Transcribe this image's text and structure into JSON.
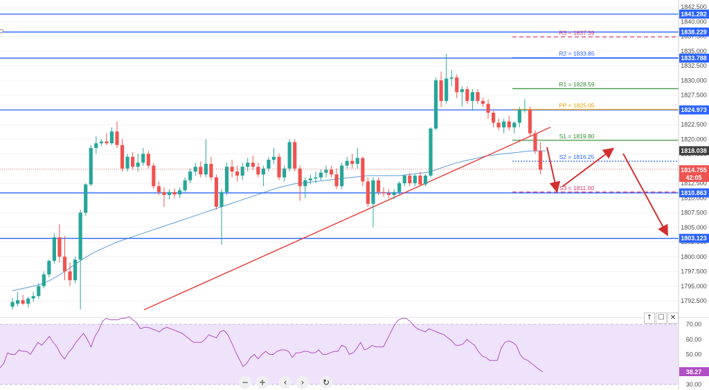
{
  "chart_data": [
    {
      "type": "candlestick",
      "title": "",
      "ylim": [
        1790.0,
        1843.5
      ],
      "y_ticks": [
        "1842.500",
        "1840.000",
        "1837.500",
        "1835.000",
        "1832.500",
        "1830.000",
        "1827.500",
        "1825.000",
        "1822.500",
        "1820.000",
        "1817.500",
        "1815.000",
        "1812.500",
        "1810.000",
        "1807.500",
        "1805.000",
        "1802.500",
        "1800.000",
        "1797.500",
        "1795.000",
        "1792.500"
      ],
      "candles": [
        {
          "o": 1791.5,
          "h": 1793.0,
          "l": 1791.0,
          "c": 1792.3
        },
        {
          "o": 1792.0,
          "h": 1794.0,
          "l": 1791.5,
          "c": 1792.6
        },
        {
          "o": 1792.6,
          "h": 1793.5,
          "l": 1791.8,
          "c": 1792.0
        },
        {
          "o": 1792.0,
          "h": 1793.2,
          "l": 1791.4,
          "c": 1792.9
        },
        {
          "o": 1792.9,
          "h": 1794.0,
          "l": 1792.3,
          "c": 1793.3
        },
        {
          "o": 1793.3,
          "h": 1795.5,
          "l": 1792.8,
          "c": 1795.0
        },
        {
          "o": 1795.0,
          "h": 1797.5,
          "l": 1794.6,
          "c": 1797.0
        },
        {
          "o": 1797.0,
          "h": 1799.5,
          "l": 1796.5,
          "c": 1799.3
        },
        {
          "o": 1799.3,
          "h": 1804.0,
          "l": 1798.8,
          "c": 1803.3
        },
        {
          "o": 1803.3,
          "h": 1805.5,
          "l": 1799.0,
          "c": 1800.0
        },
        {
          "o": 1800.0,
          "h": 1803.5,
          "l": 1796.0,
          "c": 1797.5
        },
        {
          "o": 1797.5,
          "h": 1799.0,
          "l": 1795.0,
          "c": 1796.0
        },
        {
          "o": 1796.0,
          "h": 1800.0,
          "l": 1795.5,
          "c": 1799.5
        },
        {
          "o": 1799.5,
          "h": 1808.0,
          "l": 1791.0,
          "c": 1807.5
        },
        {
          "o": 1807.5,
          "h": 1812.5,
          "l": 1807.0,
          "c": 1812.3
        },
        {
          "o": 1812.3,
          "h": 1819.0,
          "l": 1812.0,
          "c": 1818.5
        },
        {
          "o": 1818.5,
          "h": 1820.5,
          "l": 1817.5,
          "c": 1819.3
        },
        {
          "o": 1819.3,
          "h": 1820.0,
          "l": 1818.8,
          "c": 1819.6
        },
        {
          "o": 1819.6,
          "h": 1821.0,
          "l": 1819.0,
          "c": 1819.3
        },
        {
          "o": 1819.3,
          "h": 1822.0,
          "l": 1819.0,
          "c": 1821.3
        },
        {
          "o": 1821.3,
          "h": 1823.0,
          "l": 1818.5,
          "c": 1819.0
        },
        {
          "o": 1819.0,
          "h": 1820.0,
          "l": 1814.5,
          "c": 1815.0
        },
        {
          "o": 1815.0,
          "h": 1817.5,
          "l": 1814.5,
          "c": 1817.0
        },
        {
          "o": 1817.0,
          "h": 1817.8,
          "l": 1814.8,
          "c": 1815.3
        },
        {
          "o": 1815.3,
          "h": 1817.5,
          "l": 1814.5,
          "c": 1816.0
        },
        {
          "o": 1816.0,
          "h": 1818.5,
          "l": 1815.5,
          "c": 1817.5
        },
        {
          "o": 1817.5,
          "h": 1818.0,
          "l": 1815.0,
          "c": 1815.5
        },
        {
          "o": 1815.5,
          "h": 1816.0,
          "l": 1811.5,
          "c": 1812.0
        },
        {
          "o": 1812.0,
          "h": 1812.8,
          "l": 1810.5,
          "c": 1811.0
        },
        {
          "o": 1811.0,
          "h": 1811.8,
          "l": 1808.5,
          "c": 1810.5
        },
        {
          "o": 1810.5,
          "h": 1811.5,
          "l": 1809.8,
          "c": 1811.0
        },
        {
          "o": 1811.0,
          "h": 1811.6,
          "l": 1810.0,
          "c": 1810.6
        },
        {
          "o": 1810.6,
          "h": 1811.8,
          "l": 1810.0,
          "c": 1811.3
        },
        {
          "o": 1811.3,
          "h": 1813.5,
          "l": 1811.0,
          "c": 1813.0
        },
        {
          "o": 1813.0,
          "h": 1815.0,
          "l": 1812.5,
          "c": 1814.5
        },
        {
          "o": 1814.5,
          "h": 1816.0,
          "l": 1813.8,
          "c": 1815.3
        },
        {
          "o": 1815.3,
          "h": 1816.2,
          "l": 1813.5,
          "c": 1814.0
        },
        {
          "o": 1814.0,
          "h": 1820.0,
          "l": 1813.5,
          "c": 1815.8
        },
        {
          "o": 1815.8,
          "h": 1817.0,
          "l": 1813.0,
          "c": 1813.5
        },
        {
          "o": 1813.5,
          "h": 1814.0,
          "l": 1808.0,
          "c": 1808.5
        },
        {
          "o": 1808.5,
          "h": 1811.5,
          "l": 1802.0,
          "c": 1811.0
        },
        {
          "o": 1811.0,
          "h": 1816.0,
          "l": 1810.5,
          "c": 1815.3
        },
        {
          "o": 1815.3,
          "h": 1816.5,
          "l": 1813.5,
          "c": 1814.5
        },
        {
          "o": 1814.5,
          "h": 1815.5,
          "l": 1812.8,
          "c": 1813.8
        },
        {
          "o": 1813.8,
          "h": 1816.0,
          "l": 1813.0,
          "c": 1815.3
        },
        {
          "o": 1815.3,
          "h": 1816.8,
          "l": 1814.5,
          "c": 1816.0
        },
        {
          "o": 1816.0,
          "h": 1817.2,
          "l": 1814.8,
          "c": 1815.3
        },
        {
          "o": 1815.3,
          "h": 1816.0,
          "l": 1813.5,
          "c": 1814.0
        },
        {
          "o": 1814.0,
          "h": 1815.5,
          "l": 1812.0,
          "c": 1815.0
        },
        {
          "o": 1815.0,
          "h": 1817.0,
          "l": 1814.5,
          "c": 1816.5
        },
        {
          "o": 1816.5,
          "h": 1818.5,
          "l": 1815.8,
          "c": 1817.0
        },
        {
          "o": 1817.0,
          "h": 1817.5,
          "l": 1813.0,
          "c": 1813.5
        },
        {
          "o": 1813.5,
          "h": 1815.5,
          "l": 1812.8,
          "c": 1815.0
        },
        {
          "o": 1815.0,
          "h": 1820.0,
          "l": 1814.5,
          "c": 1819.5
        },
        {
          "o": 1819.5,
          "h": 1820.0,
          "l": 1814.5,
          "c": 1815.0
        },
        {
          "o": 1815.0,
          "h": 1815.5,
          "l": 1809.5,
          "c": 1812.0
        },
        {
          "o": 1812.0,
          "h": 1813.5,
          "l": 1810.0,
          "c": 1813.0
        },
        {
          "o": 1813.0,
          "h": 1814.0,
          "l": 1812.3,
          "c": 1813.3
        },
        {
          "o": 1813.3,
          "h": 1814.5,
          "l": 1812.5,
          "c": 1813.5
        },
        {
          "o": 1813.5,
          "h": 1814.8,
          "l": 1813.0,
          "c": 1814.3
        },
        {
          "o": 1814.3,
          "h": 1815.5,
          "l": 1813.5,
          "c": 1814.8
        },
        {
          "o": 1814.8,
          "h": 1815.5,
          "l": 1813.5,
          "c": 1814.0
        },
        {
          "o": 1814.0,
          "h": 1815.0,
          "l": 1811.5,
          "c": 1812.0
        },
        {
          "o": 1812.0,
          "h": 1816.0,
          "l": 1811.5,
          "c": 1815.5
        },
        {
          "o": 1815.5,
          "h": 1817.0,
          "l": 1815.0,
          "c": 1816.3
        },
        {
          "o": 1816.3,
          "h": 1817.5,
          "l": 1815.0,
          "c": 1815.8
        },
        {
          "o": 1815.8,
          "h": 1818.5,
          "l": 1815.0,
          "c": 1816.8
        },
        {
          "o": 1816.8,
          "h": 1817.0,
          "l": 1812.0,
          "c": 1812.8
        },
        {
          "o": 1812.8,
          "h": 1813.5,
          "l": 1808.5,
          "c": 1809.0
        },
        {
          "o": 1809.0,
          "h": 1813.5,
          "l": 1805.0,
          "c": 1813.0
        },
        {
          "o": 1813.0,
          "h": 1813.5,
          "l": 1810.5,
          "c": 1811.0
        },
        {
          "o": 1811.0,
          "h": 1811.8,
          "l": 1810.2,
          "c": 1810.8
        },
        {
          "o": 1810.8,
          "h": 1811.5,
          "l": 1810.0,
          "c": 1810.5
        },
        {
          "o": 1810.5,
          "h": 1811.5,
          "l": 1809.8,
          "c": 1811.0
        },
        {
          "o": 1811.0,
          "h": 1812.8,
          "l": 1810.5,
          "c": 1812.5
        },
        {
          "o": 1812.5,
          "h": 1814.0,
          "l": 1812.0,
          "c": 1813.8
        },
        {
          "o": 1813.8,
          "h": 1814.3,
          "l": 1812.0,
          "c": 1812.5
        },
        {
          "o": 1812.5,
          "h": 1814.0,
          "l": 1812.0,
          "c": 1813.8
        },
        {
          "o": 1813.8,
          "h": 1814.5,
          "l": 1812.0,
          "c": 1812.3
        },
        {
          "o": 1812.3,
          "h": 1814.0,
          "l": 1812.0,
          "c": 1813.8
        },
        {
          "o": 1813.8,
          "h": 1822.0,
          "l": 1813.5,
          "c": 1821.8
        },
        {
          "o": 1821.8,
          "h": 1830.5,
          "l": 1821.5,
          "c": 1830.0
        },
        {
          "o": 1830.0,
          "h": 1831.5,
          "l": 1825.5,
          "c": 1826.5
        },
        {
          "o": 1826.5,
          "h": 1834.5,
          "l": 1826.0,
          "c": 1830.3
        },
        {
          "o": 1830.3,
          "h": 1831.8,
          "l": 1829.0,
          "c": 1830.5
        },
        {
          "o": 1830.5,
          "h": 1831.0,
          "l": 1827.0,
          "c": 1828.0
        },
        {
          "o": 1828.0,
          "h": 1829.0,
          "l": 1825.5,
          "c": 1828.5
        },
        {
          "o": 1828.5,
          "h": 1829.0,
          "l": 1826.0,
          "c": 1826.5
        },
        {
          "o": 1826.5,
          "h": 1828.5,
          "l": 1825.0,
          "c": 1828.0
        },
        {
          "o": 1828.0,
          "h": 1828.5,
          "l": 1826.0,
          "c": 1826.5
        },
        {
          "o": 1826.5,
          "h": 1827.0,
          "l": 1825.5,
          "c": 1826.0
        },
        {
          "o": 1826.0,
          "h": 1826.8,
          "l": 1823.5,
          "c": 1824.5
        },
        {
          "o": 1824.5,
          "h": 1825.0,
          "l": 1822.0,
          "c": 1822.8
        },
        {
          "o": 1822.8,
          "h": 1823.5,
          "l": 1821.5,
          "c": 1822.0
        },
        {
          "o": 1822.0,
          "h": 1823.5,
          "l": 1821.0,
          "c": 1823.0
        },
        {
          "o": 1823.0,
          "h": 1824.0,
          "l": 1821.5,
          "c": 1822.0
        },
        {
          "o": 1822.0,
          "h": 1823.0,
          "l": 1821.0,
          "c": 1822.8
        },
        {
          "o": 1822.8,
          "h": 1825.5,
          "l": 1822.0,
          "c": 1825.0
        },
        {
          "o": 1825.0,
          "h": 1826.8,
          "l": 1824.5,
          "c": 1825.0
        },
        {
          "o": 1825.0,
          "h": 1825.5,
          "l": 1820.5,
          "c": 1821.0
        },
        {
          "o": 1821.0,
          "h": 1821.5,
          "l": 1817.5,
          "c": 1818.0
        },
        {
          "o": 1818.0,
          "h": 1819.5,
          "l": 1814.0,
          "c": 1814.8
        }
      ],
      "moving_average": [
        1794.2,
        1794.4,
        1794.6,
        1794.8,
        1795.0,
        1795.2,
        1795.5,
        1795.9,
        1796.4,
        1796.9,
        1797.5,
        1798.1,
        1798.7,
        1799.3,
        1799.9,
        1800.4,
        1800.9,
        1801.3,
        1801.7,
        1802.1,
        1802.5,
        1802.8,
        1803.1,
        1803.4,
        1803.7,
        1804.0,
        1804.3,
        1804.6,
        1804.9,
        1805.2,
        1805.5,
        1805.8,
        1806.1,
        1806.4,
        1806.7,
        1807.0,
        1807.3,
        1807.6,
        1807.9,
        1808.2,
        1808.5,
        1808.8,
        1809.1,
        1809.4,
        1809.7,
        1810.0,
        1810.3,
        1810.6,
        1810.9,
        1811.2,
        1811.5,
        1811.8,
        1812.0,
        1812.2,
        1812.4,
        1812.5,
        1812.6,
        1812.7,
        1812.8,
        1812.9,
        1813.0,
        1813.1,
        1813.2,
        1813.3,
        1813.4,
        1813.5,
        1813.6,
        1813.7,
        1813.8,
        1813.8,
        1813.8,
        1813.8,
        1813.8,
        1813.8,
        1813.8,
        1813.9,
        1814.0,
        1814.1,
        1814.2,
        1814.3,
        1814.5,
        1814.8,
        1815.1,
        1815.4,
        1815.7,
        1816.0,
        1816.2,
        1816.4,
        1816.6,
        1816.8,
        1817.0,
        1817.2,
        1817.3,
        1817.4,
        1817.5,
        1817.6,
        1817.7,
        1817.8,
        1817.9,
        1818.0,
        1818.0,
        1818.0,
        1818.0
      ],
      "horizontal_levels": [
        "1841.282",
        "1838.229",
        "1833.788",
        "1824.973",
        "1810.863",
        "1803.123"
      ],
      "pivot_levels": [
        {
          "label": "R3 = 1837.39",
          "value": 1837.39,
          "style": "dashed",
          "color": "#d6336c"
        },
        {
          "label": "R2 = 1833.85",
          "value": 1833.85,
          "style": "solid",
          "color": "#2962ff"
        },
        {
          "label": "R1 = 1828.59",
          "value": 1828.59,
          "style": "solid",
          "color": "#2e8b2e"
        },
        {
          "label": "PP = 1825.05",
          "value": 1825.05,
          "style": "solid",
          "color": "#e69a00"
        },
        {
          "label": "S1 = 1819.80",
          "value": 1819.8,
          "style": "solid",
          "color": "#2e8b2e"
        },
        {
          "label": "S2 = 1816.25",
          "value": 1816.25,
          "style": "dotted",
          "color": "#2962ff"
        },
        {
          "label": "S3 = 1811.00",
          "value": 1811.0,
          "style": "dashed",
          "color": "#d6336c"
        }
      ],
      "current_price": "1814.755",
      "countdown": "42:05",
      "ma_price": "1818.038",
      "colors": {
        "up": "#26a69a",
        "down": "#ef5350",
        "level_line": "#2962ff",
        "trendline": "#e53935",
        "ma": "#5b9bd5",
        "arrow": "#d32f2f"
      }
    },
    {
      "type": "line",
      "title": "",
      "ylim": [
        30,
        75
      ],
      "y_ticks": [
        "70.00",
        "60.00",
        "50.00",
        "40.00",
        "30.00"
      ],
      "band": [
        30,
        70
      ],
      "last_value": "38.27",
      "values": [
        41,
        44,
        51,
        50,
        50,
        53,
        52,
        52,
        50,
        54,
        58,
        56,
        59,
        62,
        58,
        55,
        50,
        47,
        51,
        54,
        58,
        61,
        64,
        60,
        55,
        62,
        66,
        72,
        74,
        73,
        73,
        73,
        74,
        74,
        75,
        73,
        71,
        67,
        68,
        68,
        67,
        66,
        65,
        67,
        68,
        67,
        66,
        65,
        64,
        62,
        60,
        58,
        58,
        58,
        60,
        63,
        62,
        61,
        65,
        66,
        63,
        58,
        52,
        47,
        42,
        44,
        48,
        50,
        47,
        50,
        52,
        50,
        50,
        52,
        53,
        53,
        52,
        48,
        51,
        51,
        52,
        52,
        51,
        51,
        53,
        50,
        50,
        51,
        52,
        52,
        56,
        55,
        50,
        51,
        54,
        58,
        53,
        54,
        56,
        55,
        55,
        55,
        60,
        65,
        70,
        73,
        74,
        74,
        72,
        69,
        67,
        66,
        65,
        67,
        66,
        65,
        64,
        63,
        61,
        59,
        56,
        56,
        57,
        60,
        58,
        56,
        52,
        49,
        48,
        46,
        46,
        46,
        54,
        58,
        59,
        58,
        56,
        50,
        47,
        46,
        44,
        42,
        40,
        38.27
      ],
      "colors": {
        "line": "#b04fc4",
        "band": "#efe3fb",
        "band_border": "#b39ddb"
      }
    }
  ],
  "controls": {
    "zoom_out": "−",
    "zoom_in": "+",
    "scroll_left": "‹",
    "scroll_right": "›",
    "reset": "↻",
    "pane_up": "↑",
    "pane_maximize": "☐",
    "pane_close": "✕"
  }
}
